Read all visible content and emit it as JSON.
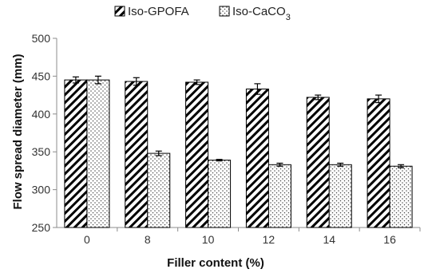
{
  "chart_data": {
    "type": "bar",
    "title": "",
    "xlabel": "Filler content (%)",
    "ylabel": "Flow spread diameter (mm)",
    "categories": [
      "0",
      "8",
      "10",
      "12",
      "14",
      "16"
    ],
    "ylim": [
      250,
      500
    ],
    "yticks": [
      250,
      300,
      350,
      400,
      450,
      500
    ],
    "grid": false,
    "legend_position": "top",
    "series": [
      {
        "name": "Iso-GPOFA",
        "pattern": "diagonal-hatch",
        "values": [
          445,
          443,
          442,
          433,
          422,
          420
        ],
        "errors": [
          4,
          5,
          3,
          7,
          3,
          5
        ]
      },
      {
        "name": "Iso-CaCO3",
        "pattern": "dotted",
        "values": [
          445,
          348,
          339,
          333,
          333,
          331
        ],
        "errors": [
          5,
          3,
          1,
          2,
          2,
          2
        ]
      }
    ],
    "colors": {
      "bar_outline": "#000000",
      "axis": "#8c8c8c",
      "background": "#ffffff"
    }
  }
}
